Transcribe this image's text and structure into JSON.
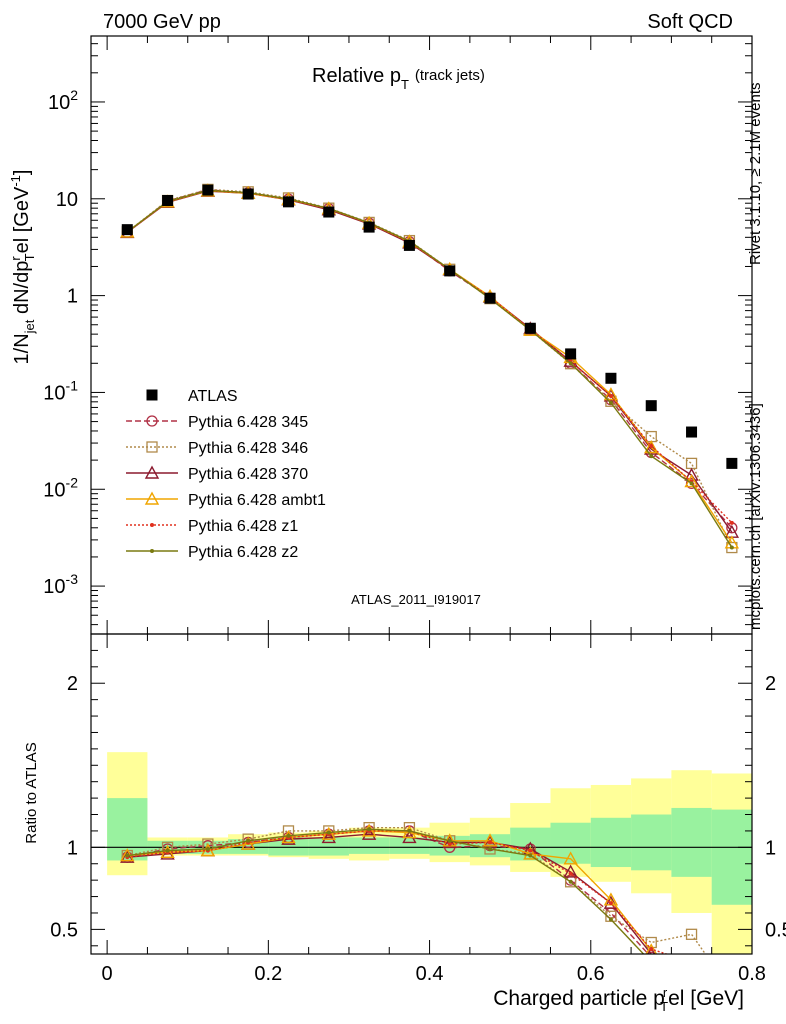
{
  "header": {
    "left": "7000 GeV pp",
    "right": "Soft QCD"
  },
  "side_text": {
    "rivet": "Rivet 3.1.10, ≥ 2.1M events",
    "mcplots": "mcplots.cern.ch [arXiv:1306.3436]"
  },
  "colors": {
    "atlas": "#000000",
    "p345": "#b03045",
    "p346": "#b08a4a",
    "p370": "#8b1a2f",
    "ambt1": "#f0a500",
    "z1": "#e0301e",
    "z2": "#7a7a10",
    "band_inner": "#99f29f",
    "band_outer": "#ffff99"
  },
  "chart_data": {
    "type": "line",
    "title": "Relative p",
    "title_sub": "T",
    "title_note": "(track jets)",
    "analysis_label": "ATLAS_2011_I919017",
    "xlabel": "Charged particle p",
    "xlabel_sub": "T",
    "xlabel_tail": "el [GeV]",
    "xlabel_sup": "r",
    "ylabel": "1/N",
    "ylabel_sub": "jet",
    "ylabel_mid": " dN/dp",
    "ylabel_sup": "r",
    "ylabel_sub2": "T",
    "ylabel_tail": "el [GeV",
    "ylabel_sup2": "-1",
    "ylabel_end": "]",
    "ratio_ylabel": "Ratio to ATLAS",
    "xlim": [
      -0.02,
      0.8
    ],
    "ylim": [
      0.00032,
      480
    ],
    "yscale": "log",
    "ratio_ylim": [
      0.35,
      2.3
    ],
    "x_ticks": [
      "0",
      "0.2",
      "0.4",
      "0.6",
      "0.8"
    ],
    "y_ticks": [
      {
        "base": "10",
        "exp": "-3",
        "v": 0.001
      },
      {
        "base": "10",
        "exp": "-2",
        "v": 0.01
      },
      {
        "base": "10",
        "exp": "-1",
        "v": 0.1
      },
      {
        "base": "1",
        "exp": "",
        "v": 1
      },
      {
        "base": "10",
        "exp": "",
        "v": 10
      },
      {
        "base": "10",
        "exp": "2",
        "v": 100
      }
    ],
    "ratio_ticks": [
      "0.5",
      "1",
      "2"
    ],
    "x": [
      0.025,
      0.075,
      0.125,
      0.175,
      0.225,
      0.275,
      0.325,
      0.375,
      0.425,
      0.475,
      0.525,
      0.575,
      0.625,
      0.675,
      0.725,
      0.775
    ],
    "x_edges": [
      0.0,
      0.05,
      0.1,
      0.15,
      0.2,
      0.25,
      0.3,
      0.35,
      0.4,
      0.45,
      0.5,
      0.55,
      0.6,
      0.65,
      0.7,
      0.75,
      0.8
    ],
    "atlas": {
      "name": "ATLAS",
      "values": [
        4.8,
        9.6,
        12.3,
        11.2,
        9.3,
        7.3,
        5.1,
        3.3,
        1.8,
        0.94,
        0.46,
        0.25,
        0.14,
        0.073,
        0.039,
        0.0185
      ],
      "band_inner": [
        [
          0.92,
          1.3
        ],
        [
          0.96,
          1.04
        ],
        [
          0.96,
          1.04
        ],
        [
          0.96,
          1.05
        ],
        [
          0.95,
          1.06
        ],
        [
          0.95,
          1.06
        ],
        [
          0.96,
          1.06
        ],
        [
          0.96,
          1.06
        ],
        [
          0.95,
          1.07
        ],
        [
          0.94,
          1.08
        ],
        [
          0.92,
          1.12
        ],
        [
          0.9,
          1.15
        ],
        [
          0.88,
          1.18
        ],
        [
          0.86,
          1.2
        ],
        [
          0.82,
          1.24
        ],
        [
          0.65,
          1.23
        ]
      ],
      "band_outer": [
        [
          0.83,
          1.58
        ],
        [
          0.95,
          1.06
        ],
        [
          0.95,
          1.06
        ],
        [
          0.95,
          1.08
        ],
        [
          0.94,
          1.09
        ],
        [
          0.93,
          1.1
        ],
        [
          0.92,
          1.12
        ],
        [
          0.93,
          1.12
        ],
        [
          0.91,
          1.15
        ],
        [
          0.89,
          1.18
        ],
        [
          0.85,
          1.27
        ],
        [
          0.82,
          1.36
        ],
        [
          0.79,
          1.38
        ],
        [
          0.72,
          1.42
        ],
        [
          0.6,
          1.47
        ],
        [
          0.35,
          1.45
        ]
      ]
    },
    "series": [
      {
        "name": "Pythia 6.428 345",
        "key": "p345",
        "marker": "circle",
        "dash": "6,3",
        "ratio": [
          0.94,
          0.99,
          1.01,
          1.03,
          1.06,
          1.08,
          1.1,
          1.1,
          1.0,
          1.01,
          0.99,
          0.8,
          0.6,
          0.33,
          null,
          null
        ],
        "values": [
          4.5,
          9.5,
          12.4,
          11.5,
          9.9,
          7.9,
          5.6,
          3.6,
          1.8,
          0.95,
          0.455,
          0.2,
          0.084,
          0.024,
          0.0115,
          0.004
        ]
      },
      {
        "name": "Pythia 6.428 346",
        "key": "p346",
        "marker": "square",
        "dash": "2,2",
        "ratio": [
          0.95,
          1.0,
          1.02,
          1.05,
          1.1,
          1.1,
          1.12,
          1.12,
          1.04,
          0.99,
          0.96,
          0.79,
          0.58,
          0.42,
          0.47,
          0.12
        ],
        "values": [
          4.55,
          9.6,
          12.5,
          11.8,
          10.2,
          8.0,
          5.7,
          3.7,
          1.87,
          0.93,
          0.44,
          0.198,
          0.081,
          0.035,
          0.0185,
          0.0025
        ]
      },
      {
        "name": "Pythia 6.428 370",
        "key": "p370",
        "marker": "triangle",
        "dash": "",
        "ratio": [
          0.94,
          0.96,
          0.98,
          1.02,
          1.05,
          1.06,
          1.08,
          1.06,
          1.03,
          1.03,
          0.99,
          0.85,
          0.66,
          0.35,
          null,
          null
        ],
        "values": [
          4.5,
          9.2,
          12.0,
          11.4,
          9.75,
          7.7,
          5.5,
          3.5,
          1.85,
          0.97,
          0.455,
          0.21,
          0.092,
          0.026,
          0.014,
          0.0036
        ]
      },
      {
        "name": "Pythia 6.428 ambt1",
        "key": "ambt1",
        "marker": "triangle",
        "dash": "",
        "ratio": [
          0.95,
          0.97,
          0.98,
          1.02,
          1.06,
          1.08,
          1.1,
          1.09,
          1.04,
          1.04,
          0.96,
          0.93,
          0.68,
          0.37,
          null,
          null
        ],
        "values": [
          4.55,
          9.3,
          12.1,
          11.4,
          9.85,
          7.9,
          5.6,
          3.6,
          1.87,
          0.98,
          0.44,
          0.23,
          0.095,
          0.027,
          0.012,
          0.0028
        ]
      },
      {
        "name": "Pythia 6.428 z1",
        "key": "z1",
        "marker": "dot",
        "dash": "2,2",
        "ratio": [
          0.94,
          0.97,
          0.98,
          1.03,
          1.06,
          1.08,
          1.1,
          1.1,
          1.02,
          1.03,
          0.98,
          0.84,
          0.66,
          0.38,
          0.3,
          null
        ],
        "values": [
          4.5,
          9.3,
          12.1,
          11.5,
          9.85,
          7.9,
          5.6,
          3.6,
          1.84,
          0.97,
          0.45,
          0.21,
          0.092,
          0.028,
          0.012,
          0.0045
        ]
      },
      {
        "name": "Pythia 6.428 z2",
        "key": "z2",
        "marker": "dot",
        "dash": "",
        "ratio": [
          0.95,
          0.98,
          0.99,
          1.04,
          1.07,
          1.09,
          1.11,
          1.1,
          1.04,
          0.99,
          0.95,
          0.79,
          0.56,
          0.3,
          null,
          null
        ],
        "values": [
          4.55,
          9.4,
          12.2,
          11.6,
          9.95,
          7.95,
          5.65,
          3.65,
          1.87,
          0.93,
          0.44,
          0.2,
          0.078,
          0.022,
          0.0115,
          0.0025
        ]
      }
    ]
  }
}
